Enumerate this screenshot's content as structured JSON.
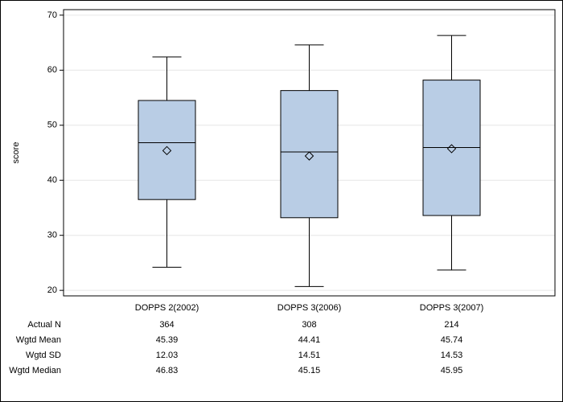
{
  "chart_data": {
    "type": "box",
    "y_label": "score",
    "categories": [
      "DOPPS 2(2002)",
      "DOPPS 3(2006)",
      "DOPPS 3(2007)"
    ],
    "boxes": [
      {
        "whisker_low": 24.2,
        "q1": 36.5,
        "median": 46.83,
        "q3": 54.5,
        "whisker_high": 62.4,
        "mean": 45.39
      },
      {
        "whisker_low": 20.7,
        "q1": 33.2,
        "median": 45.15,
        "q3": 56.3,
        "whisker_high": 64.6,
        "mean": 44.41
      },
      {
        "whisker_low": 23.7,
        "q1": 33.6,
        "median": 45.95,
        "q3": 58.2,
        "whisker_high": 66.3,
        "mean": 45.74
      }
    ],
    "color": "#b9cde5",
    "ylim": [
      19,
      71
    ],
    "yticks": [
      20,
      30,
      40,
      50,
      60,
      70
    ],
    "grid": true,
    "table": [
      {
        "label": "Actual N",
        "values": [
          364,
          308,
          214
        ]
      },
      {
        "label": "Wgtd Mean",
        "values": [
          45.39,
          44.41,
          45.74
        ]
      },
      {
        "label": "Wgtd SD",
        "values": [
          12.03,
          14.51,
          14.53
        ]
      },
      {
        "label": "Wgtd Median",
        "values": [
          46.83,
          45.15,
          45.95
        ]
      }
    ]
  }
}
